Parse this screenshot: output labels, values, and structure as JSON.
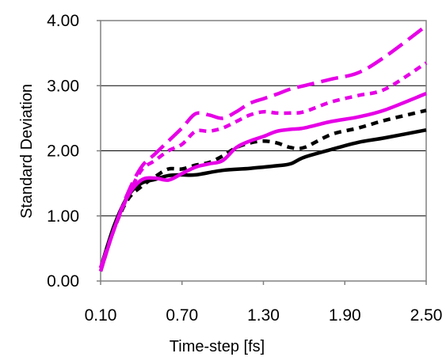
{
  "chart_data": {
    "type": "line",
    "title": "",
    "xlabel": "Time-step [fs]",
    "ylabel": "Standard Deviation",
    "xlim": [
      0.1,
      2.5
    ],
    "ylim": [
      0.0,
      4.0
    ],
    "x_ticks": [
      "0.10",
      "0.70",
      "1.30",
      "1.90",
      "2.50"
    ],
    "y_ticks": [
      "0.00",
      "1.00",
      "2.00",
      "3.00",
      "4.00"
    ],
    "grid": "horizontal",
    "legend": "none",
    "series": [
      {
        "color": "#000000",
        "dash": "solid",
        "points": [
          [
            0.1,
            0.2
          ],
          [
            0.2,
            0.85
          ],
          [
            0.3,
            1.3
          ],
          [
            0.4,
            1.5
          ],
          [
            0.5,
            1.56
          ],
          [
            0.6,
            1.62
          ],
          [
            0.7,
            1.63
          ],
          [
            0.8,
            1.63
          ],
          [
            1.0,
            1.7
          ],
          [
            1.2,
            1.73
          ],
          [
            1.4,
            1.77
          ],
          [
            1.5,
            1.8
          ],
          [
            1.6,
            1.9
          ],
          [
            1.8,
            2.02
          ],
          [
            2.0,
            2.13
          ],
          [
            2.2,
            2.2
          ],
          [
            2.5,
            2.32
          ]
        ]
      },
      {
        "color": "#000000",
        "dash": "dashed",
        "points": [
          [
            0.1,
            0.15
          ],
          [
            0.2,
            0.8
          ],
          [
            0.3,
            1.25
          ],
          [
            0.4,
            1.45
          ],
          [
            0.5,
            1.6
          ],
          [
            0.6,
            1.72
          ],
          [
            0.7,
            1.72
          ],
          [
            0.8,
            1.78
          ],
          [
            0.9,
            1.82
          ],
          [
            1.0,
            1.92
          ],
          [
            1.1,
            2.05
          ],
          [
            1.2,
            2.12
          ],
          [
            1.3,
            2.15
          ],
          [
            1.4,
            2.12
          ],
          [
            1.5,
            2.05
          ],
          [
            1.6,
            2.05
          ],
          [
            1.8,
            2.25
          ],
          [
            2.0,
            2.35
          ],
          [
            2.2,
            2.47
          ],
          [
            2.5,
            2.62
          ]
        ]
      },
      {
        "color": "#e600e6",
        "dash": "solid",
        "points": [
          [
            0.1,
            0.15
          ],
          [
            0.2,
            0.8
          ],
          [
            0.3,
            1.3
          ],
          [
            0.4,
            1.55
          ],
          [
            0.5,
            1.58
          ],
          [
            0.6,
            1.55
          ],
          [
            0.7,
            1.65
          ],
          [
            0.8,
            1.75
          ],
          [
            0.9,
            1.8
          ],
          [
            1.0,
            1.85
          ],
          [
            1.1,
            2.05
          ],
          [
            1.2,
            2.15
          ],
          [
            1.3,
            2.22
          ],
          [
            1.4,
            2.3
          ],
          [
            1.5,
            2.33
          ],
          [
            1.6,
            2.35
          ],
          [
            1.8,
            2.45
          ],
          [
            2.0,
            2.52
          ],
          [
            2.2,
            2.63
          ],
          [
            2.5,
            2.88
          ]
        ]
      },
      {
        "color": "#e600e6",
        "dash": "dashed",
        "points": [
          [
            0.1,
            0.2
          ],
          [
            0.2,
            0.8
          ],
          [
            0.3,
            1.3
          ],
          [
            0.4,
            1.7
          ],
          [
            0.5,
            1.85
          ],
          [
            0.6,
            2.0
          ],
          [
            0.7,
            2.1
          ],
          [
            0.8,
            2.3
          ],
          [
            0.9,
            2.3
          ],
          [
            1.0,
            2.35
          ],
          [
            1.1,
            2.45
          ],
          [
            1.2,
            2.55
          ],
          [
            1.3,
            2.6
          ],
          [
            1.4,
            2.58
          ],
          [
            1.5,
            2.58
          ],
          [
            1.6,
            2.6
          ],
          [
            1.8,
            2.75
          ],
          [
            2.0,
            2.85
          ],
          [
            2.2,
            2.95
          ],
          [
            2.5,
            3.35
          ]
        ]
      },
      {
        "color": "#e600e6",
        "dash": "longdash",
        "points": [
          [
            0.1,
            0.2
          ],
          [
            0.2,
            0.8
          ],
          [
            0.3,
            1.35
          ],
          [
            0.4,
            1.75
          ],
          [
            0.5,
            1.95
          ],
          [
            0.6,
            2.15
          ],
          [
            0.7,
            2.35
          ],
          [
            0.8,
            2.57
          ],
          [
            0.9,
            2.55
          ],
          [
            1.0,
            2.5
          ],
          [
            1.1,
            2.6
          ],
          [
            1.2,
            2.73
          ],
          [
            1.3,
            2.8
          ],
          [
            1.4,
            2.87
          ],
          [
            1.5,
            2.95
          ],
          [
            1.6,
            3.0
          ],
          [
            1.8,
            3.1
          ],
          [
            2.0,
            3.2
          ],
          [
            2.2,
            3.45
          ],
          [
            2.5,
            3.92
          ]
        ]
      }
    ]
  }
}
